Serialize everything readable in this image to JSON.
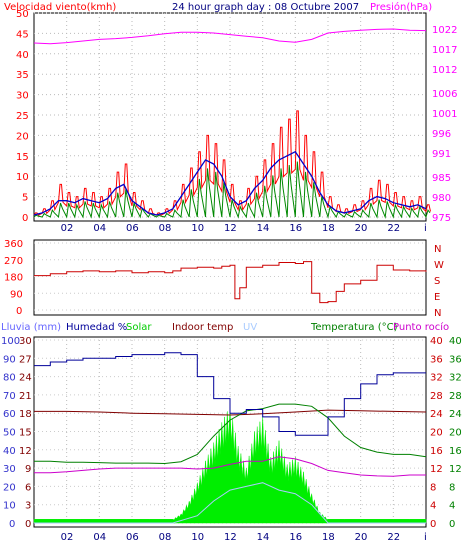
{
  "header": {
    "wind_label": "Velocidad viento(kmh)",
    "title": "24 hour graph day : 08 Octubre 2007",
    "pressure_label": "Presión(hPa)"
  },
  "colors": {
    "wind_gust": "#ff0000",
    "wind_avg": "#0000cc",
    "wind_green": "#008800",
    "pressure": "#ff00ff",
    "direction": "#cc0000",
    "humidity": "#000099",
    "solar": "#00ee00",
    "indoor_temp": "#800000",
    "uv": "#aaccff",
    "temperature": "#008000",
    "dew_point": "#cc00cc",
    "rain": "#6699ff"
  },
  "chart_data": [
    {
      "type": "line",
      "panel": "wind-pressure",
      "xlabel": "",
      "x_ticks": [
        "02",
        "04",
        "06",
        "08",
        "10",
        "12",
        "14",
        "16",
        "18",
        "20",
        "22"
      ],
      "x_range_hours": [
        0,
        24
      ],
      "ylabel_left": "Velocidad viento(kmh)",
      "left_ticks": [
        0,
        5,
        10,
        15,
        20,
        25,
        30,
        35,
        40,
        45,
        50
      ],
      "left_range": [
        0,
        50
      ],
      "ylabel_right": "Presión(hPa)",
      "right_ticks": [
        975,
        980,
        985,
        991,
        996,
        1001,
        1006,
        1012,
        1017,
        1022
      ],
      "right_range": [
        975,
        1026
      ],
      "series": [
        {
          "axis": "left",
          "x": [
            0,
            0.5,
            1,
            1.5,
            2,
            2.5,
            3,
            3.5,
            4,
            4.5,
            5,
            5.5,
            6,
            6.5,
            7,
            7.5,
            8,
            8.5,
            9,
            9.5,
            10,
            10.5,
            11,
            11.5,
            12,
            12.5,
            13,
            13.5,
            14,
            14.5,
            15,
            15.5,
            16,
            16.5,
            17,
            17.5,
            18,
            18.5,
            19,
            19.5,
            20,
            20.5,
            21,
            21.5,
            22,
            22.5,
            23,
            23.5,
            24
          ],
          "y": [
            1,
            2,
            4,
            8,
            6,
            5,
            7,
            6,
            5,
            7,
            11,
            13,
            6,
            4,
            2,
            1,
            2,
            4,
            8,
            12,
            16,
            20,
            18,
            14,
            8,
            4,
            7,
            10,
            14,
            18,
            22,
            24,
            26,
            20,
            16,
            11,
            5,
            3,
            2,
            3,
            4,
            7,
            9,
            8,
            6,
            5,
            4,
            5,
            3
          ]
        },
        {
          "axis": "left",
          "x": [
            0,
            0.5,
            1,
            1.5,
            2,
            2.5,
            3,
            3.5,
            4,
            4.5,
            5,
            5.5,
            6,
            6.5,
            7,
            7.5,
            8,
            8.5,
            9,
            9.5,
            10,
            10.5,
            11,
            11.5,
            12,
            12.5,
            13,
            13.5,
            14,
            14.5,
            15,
            15.5,
            16,
            16.5,
            17,
            17.5,
            18,
            18.5,
            19,
            19.5,
            20,
            20.5,
            21,
            21.5,
            22,
            22.5,
            23,
            23.5,
            24
          ],
          "y": [
            0.5,
            1,
            2,
            4,
            4,
            3.5,
            4.5,
            4,
            3.5,
            4.5,
            7,
            8,
            4,
            2.5,
            1,
            0.5,
            1,
            2,
            5,
            8,
            11,
            14,
            13,
            10,
            5,
            3,
            4,
            7,
            9,
            12,
            14,
            15,
            16,
            13,
            10,
            6,
            3,
            1.5,
            1,
            1.5,
            2,
            4,
            5,
            4.5,
            3.5,
            3,
            2.5,
            3,
            2
          ]
        },
        {
          "axis": "right",
          "x": [
            0,
            1,
            2,
            3,
            4,
            5,
            6,
            7,
            8,
            9,
            10,
            11,
            12,
            13,
            14,
            15,
            16,
            17,
            18,
            19,
            20,
            21,
            22,
            23,
            24
          ],
          "y": [
            1018.5,
            1018.3,
            1018.6,
            1019,
            1019.4,
            1019.6,
            1019.9,
            1020.3,
            1020.8,
            1021.2,
            1021.2,
            1021.0,
            1020.6,
            1020.2,
            1019.8,
            1019.0,
            1018.7,
            1019.4,
            1021.0,
            1021.4,
            1021.7,
            1021.9,
            1022.0,
            1021.7,
            1021.6
          ]
        }
      ]
    },
    {
      "type": "line",
      "panel": "wind-direction",
      "x_range_hours": [
        0,
        24
      ],
      "left_ticks": [
        0,
        90,
        180,
        270,
        360
      ],
      "left_range": [
        0,
        360
      ],
      "right_ticks": [
        "N",
        "W",
        "S",
        "E",
        "N"
      ],
      "series": [
        {
          "x": [
            0,
            1,
            2,
            3,
            4,
            5,
            6,
            7,
            8,
            8.5,
            9,
            10,
            11,
            11.5,
            12,
            12.3,
            12.6,
            13,
            14,
            15,
            16,
            16.5,
            17,
            17.5,
            18,
            18.5,
            19,
            20,
            21,
            22,
            23,
            24
          ],
          "y": [
            185,
            195,
            205,
            210,
            205,
            210,
            200,
            205,
            200,
            210,
            225,
            230,
            225,
            235,
            240,
            60,
            120,
            230,
            240,
            255,
            250,
            260,
            90,
            40,
            45,
            100,
            140,
            160,
            240,
            215,
            210,
            205
          ]
        }
      ]
    },
    {
      "type": "line",
      "panel": "humidity-temperature",
      "x_range_hours": [
        0,
        24
      ],
      "legend": [
        "Lluvia (mm)",
        "Humedad %",
        "Solar",
        "Indoor temp",
        "UV",
        "Temperatura (°C)",
        "Punto rocío"
      ],
      "left_outer_ticks": [
        0,
        10,
        20,
        30,
        40,
        50,
        60,
        70,
        80,
        90,
        100
      ],
      "left_outer_range": [
        0,
        100
      ],
      "left_inner_ticks": [
        0,
        3,
        6,
        9,
        12,
        15,
        18,
        21,
        24,
        27,
        30
      ],
      "left_inner_range": [
        0,
        30
      ],
      "right_inner_ticks": [
        0,
        4,
        8,
        12,
        16,
        20,
        24,
        28,
        32,
        36,
        40
      ],
      "right_inner_range": [
        0,
        40
      ],
      "right_outer_ticks": [
        0,
        4,
        8,
        12,
        16,
        20,
        24,
        28,
        32,
        36,
        40
      ],
      "right_outer_range": [
        0,
        40
      ],
      "series": [
        {
          "name": "Humedad %",
          "axis": "left_outer",
          "x": [
            0,
            1,
            2,
            3,
            4,
            5,
            6,
            7,
            8,
            9,
            10,
            11,
            12,
            13,
            14,
            15,
            16,
            17,
            18,
            19,
            20,
            21,
            22,
            23,
            24
          ],
          "y": [
            86,
            88,
            89,
            90,
            90,
            91,
            92,
            92,
            93,
            92,
            80,
            68,
            60,
            62,
            58,
            50,
            48,
            48,
            58,
            68,
            76,
            81,
            82,
            82,
            82
          ]
        },
        {
          "name": "Indoor temp",
          "axis": "left_inner",
          "x": [
            0,
            2,
            4,
            6,
            8,
            10,
            12,
            14,
            16,
            18,
            20,
            22,
            24
          ],
          "y": [
            18.3,
            18.3,
            18.2,
            18.0,
            17.9,
            17.8,
            17.7,
            17.9,
            18.2,
            18.5,
            18.4,
            18.3,
            18.2
          ]
        },
        {
          "name": "Temperatura (°C)",
          "axis": "right_inner",
          "x": [
            0,
            1,
            2,
            3,
            4,
            5,
            6,
            7,
            8,
            9,
            10,
            11,
            12,
            13,
            14,
            15,
            16,
            17,
            18,
            19,
            20,
            21,
            22,
            23,
            24
          ],
          "y": [
            13.5,
            13.5,
            13.3,
            13.3,
            13.2,
            13.1,
            13.1,
            13.1,
            13.0,
            13.4,
            15.0,
            19.0,
            22.5,
            24.5,
            25.0,
            26.0,
            26.0,
            25.5,
            23.0,
            19.0,
            16.5,
            15.5,
            15.0,
            15.0,
            14.5
          ]
        },
        {
          "name": "Punto rocío",
          "axis": "right_inner",
          "x": [
            0,
            1,
            2,
            3,
            4,
            5,
            6,
            7,
            8,
            9,
            10,
            11,
            12,
            13,
            14,
            15,
            16,
            17,
            18,
            19,
            20,
            21,
            22,
            23,
            24
          ],
          "y": [
            11.0,
            11.0,
            11.2,
            11.5,
            11.8,
            12.0,
            12.0,
            12.0,
            12.0,
            12.0,
            11.8,
            12.0,
            12.8,
            13.5,
            13.5,
            14.5,
            14.0,
            13.0,
            11.5,
            11.0,
            10.5,
            10.3,
            10.2,
            10.5,
            10.5
          ]
        },
        {
          "name": "Solar",
          "axis": "left_outer",
          "x": [
            0,
            8.5,
            9,
            9.5,
            10,
            10.5,
            11,
            11.5,
            12,
            12.5,
            13,
            13.5,
            14,
            14.5,
            15,
            15.5,
            16,
            16.5,
            17,
            17.5,
            18,
            24
          ],
          "y": [
            2,
            2,
            5,
            12,
            22,
            34,
            44,
            55,
            64,
            42,
            30,
            50,
            58,
            36,
            45,
            32,
            36,
            28,
            16,
            6,
            2,
            2
          ]
        },
        {
          "name": "UV",
          "axis": "left_outer",
          "x": [
            0,
            8.5,
            10,
            11,
            12,
            13,
            14,
            15,
            16,
            17,
            18,
            24
          ],
          "y": [
            0,
            0,
            4,
            12,
            18,
            20,
            22,
            18,
            16,
            10,
            0,
            0
          ]
        }
      ]
    }
  ]
}
